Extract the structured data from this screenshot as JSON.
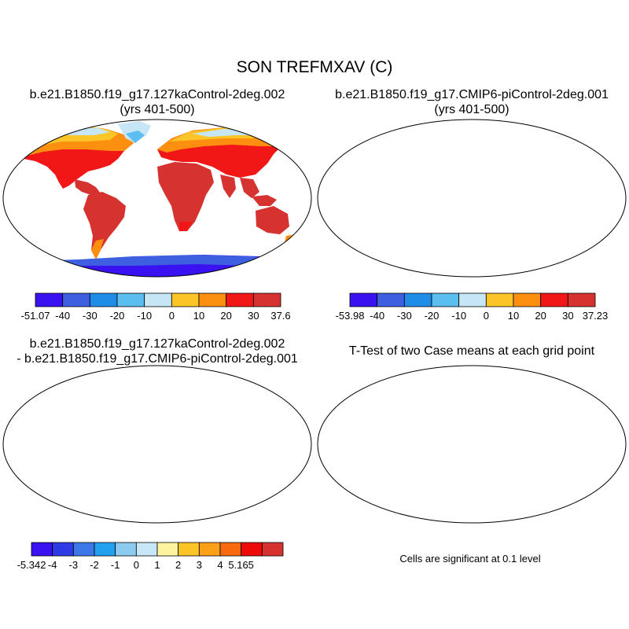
{
  "title": "SON TREFMXAV (C)",
  "panels": {
    "top_left": {
      "title_line1": "b.e21.B1850.f19_g17.127kaControl-2deg.002",
      "title_line2": "(yrs 401-500)",
      "colorbar": {
        "colors": [
          "#3a12f2",
          "#3d5fe0",
          "#1f8de8",
          "#5bbdf0",
          "#c6e6f5",
          "#fcc527",
          "#fc8f10",
          "#f21717",
          "#d63230"
        ],
        "labels": [
          "-51.07",
          "-40",
          "-30",
          "-20",
          "-10",
          "0",
          "10",
          "20",
          "30",
          "37.6"
        ]
      }
    },
    "top_right": {
      "title_line1": "b.e21.B1850.f19_g17.CMIP6-piControl-2deg.001",
      "title_line2": "(yrs 401-500)",
      "colorbar": {
        "colors": [
          "#3a12f2",
          "#3d5fe0",
          "#1f8de8",
          "#5bbdf0",
          "#c6e6f5",
          "#fcc527",
          "#fc8f10",
          "#f21717",
          "#d63230"
        ],
        "labels": [
          "-53.98",
          "-40",
          "-30",
          "-20",
          "-10",
          "0",
          "10",
          "20",
          "30",
          "37.23"
        ]
      }
    },
    "bottom_left": {
      "title_line1": "b.e21.B1850.f19_g17.127kaControl-2deg.002",
      "title_line2": "- b.e21.B1850.f19_g17.CMIP6-piControl-2deg.001",
      "colorbar": {
        "colors": [
          "#3a12f2",
          "#2e3ae6",
          "#3d78e8",
          "#22a0f0",
          "#8ccaf0",
          "#c7e7f6",
          "#fef4a0",
          "#fcc527",
          "#fca017",
          "#f76b0e",
          "#ef0a0a",
          "#d63230"
        ],
        "labels": [
          "-5.342",
          "-4",
          "-3",
          "-2",
          "-1",
          "0",
          "1",
          "2",
          "3",
          "4",
          "5.165"
        ]
      }
    },
    "bottom_right": {
      "title_line1": "T-Test of two Case means at each grid point",
      "note": "Cells are significant at 0.1 level"
    }
  }
}
